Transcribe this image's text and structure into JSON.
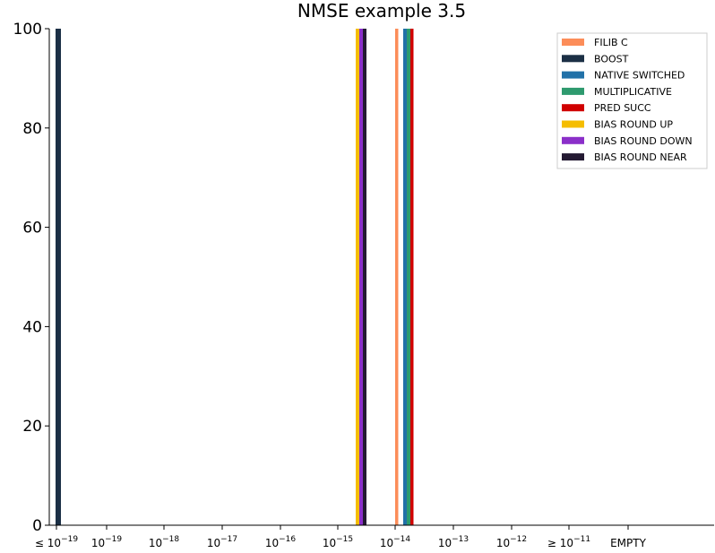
{
  "chart_data": {
    "type": "bar",
    "title": "NMSE example 3.5",
    "xlabel": "",
    "ylabel": "",
    "ylim": [
      0,
      100
    ],
    "yticks": [
      0,
      20,
      40,
      60,
      80,
      100
    ],
    "grid": false,
    "legend_position": "top-right",
    "x_axis": {
      "scale": "log-bins",
      "tick_labels": [
        {
          "prefix": "≤ ",
          "base": "10",
          "exp": "−19"
        },
        {
          "prefix": "",
          "base": "10",
          "exp": "−19"
        },
        {
          "prefix": "",
          "base": "10",
          "exp": "−18"
        },
        {
          "prefix": "",
          "base": "10",
          "exp": "−17"
        },
        {
          "prefix": "",
          "base": "10",
          "exp": "−16"
        },
        {
          "prefix": "",
          "base": "10",
          "exp": "−15"
        },
        {
          "prefix": "",
          "base": "10",
          "exp": "−14"
        },
        {
          "prefix": "",
          "base": "10",
          "exp": "−13"
        },
        {
          "prefix": "",
          "base": "10",
          "exp": "−12"
        },
        {
          "prefix": "≥ ",
          "base": "10",
          "exp": "−11"
        },
        {
          "prefix": "",
          "base": "EMPTY",
          "exp": ""
        }
      ]
    },
    "series": [
      {
        "name": "FILIB C",
        "color": "#fc8d59",
        "bin": "10^-14",
        "value": 100
      },
      {
        "name": "BOOST",
        "color": "#1b2f45",
        "bin": "≤ 10^-19",
        "value": 100
      },
      {
        "name": "NATIVE SWITCHED",
        "color": "#2171a8",
        "bin": "10^-14",
        "value": 100
      },
      {
        "name": "MULTIPLICATIVE",
        "color": "#2e9a6e",
        "bin": "10^-14",
        "value": 100
      },
      {
        "name": "PRED SUCC",
        "color": "#d00000",
        "bin": "10^-14",
        "value": 100
      },
      {
        "name": "BIAS ROUND UP",
        "color": "#f5bd00",
        "bin": "10^-15",
        "value": 100
      },
      {
        "name": "BIAS ROUND DOWN",
        "color": "#8b2fc9",
        "bin": "10^-15",
        "value": 100
      },
      {
        "name": "BIAS ROUND NEAR",
        "color": "#241a33",
        "bin": "10^-15",
        "value": 100
      }
    ]
  }
}
